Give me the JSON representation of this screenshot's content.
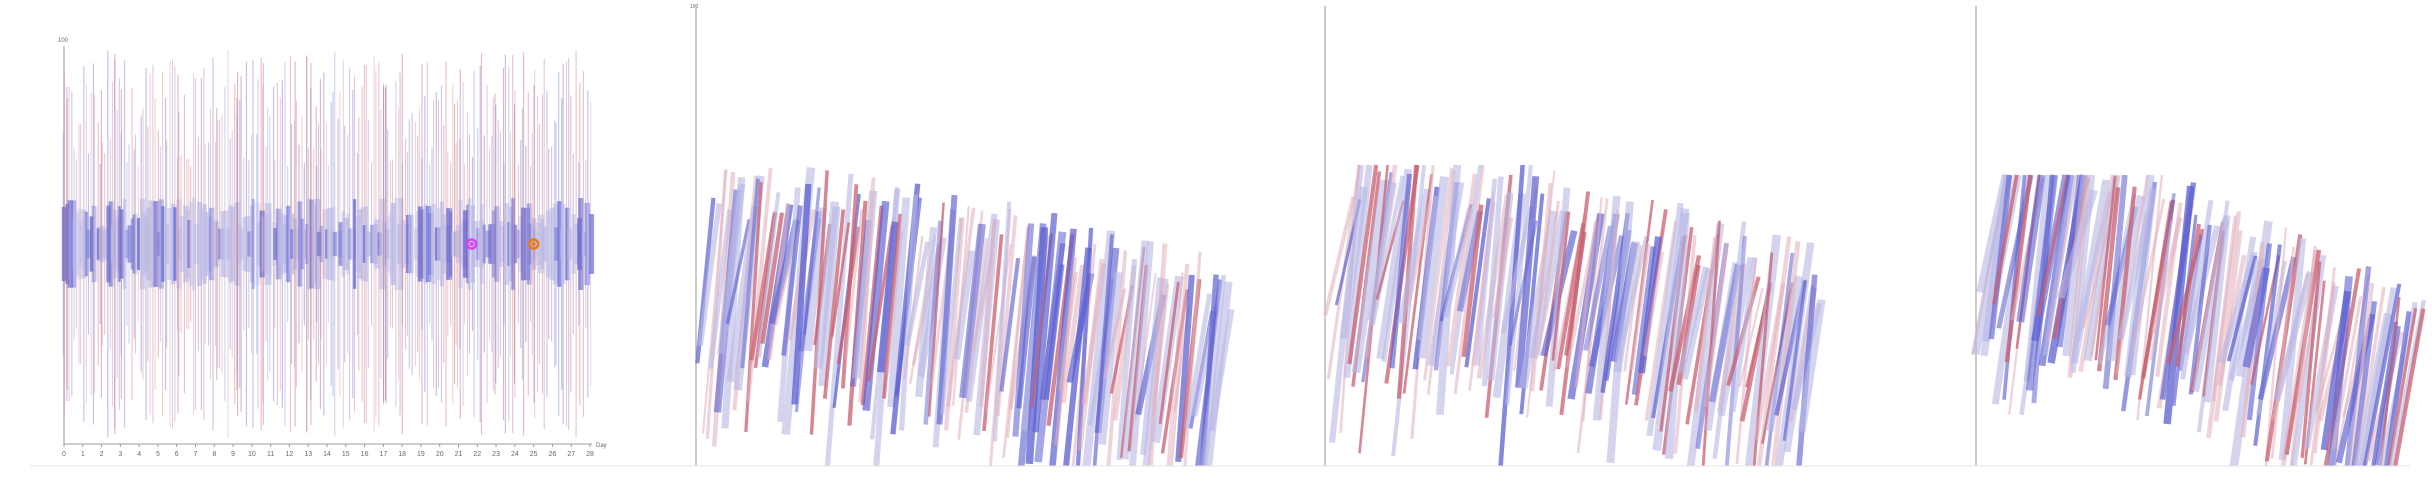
{
  "chart_data": [
    {
      "type": "scatter",
      "view": "linear",
      "y_top_label": "100",
      "x_end_label": "Day",
      "x_ticks": [
        "0",
        "1",
        "2",
        "3",
        "4",
        "5",
        "6",
        "7",
        "8",
        "9",
        "10",
        "11",
        "12",
        "13",
        "14",
        "15",
        "16",
        "17",
        "18",
        "19",
        "20",
        "21",
        "22",
        "23",
        "24",
        "25",
        "26",
        "27",
        "28"
      ],
      "xlim": [
        0,
        28
      ],
      "ylim": [
        -100,
        100
      ],
      "markers": [
        {
          "x": 21.7,
          "y": 0,
          "color": "#d946ef"
        },
        {
          "x": 25.0,
          "y": 0,
          "color": "#ea7a14"
        }
      ]
    },
    {
      "type": "scatter",
      "view": "warped-1",
      "y_top_label": "100"
    },
    {
      "type": "scatter",
      "view": "warped-2"
    },
    {
      "type": "scatter",
      "view": "warped-3"
    }
  ],
  "colors": {
    "pink": "#c9606f",
    "light_pink": "#e2b0bd",
    "blue": "#5a5ed0",
    "lavender": "#b9b9e6",
    "axis": "#9a9a9a",
    "baseline": "#e6e6e6"
  }
}
